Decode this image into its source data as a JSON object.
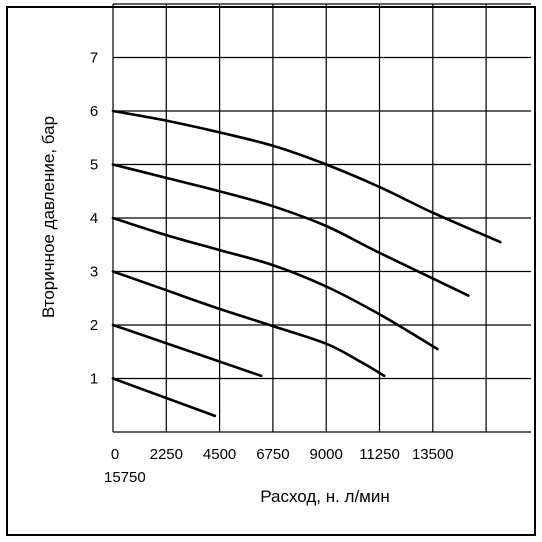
{
  "chart_data": {
    "type": "line",
    "title": "",
    "xlabel": "Расход, н. л/мин",
    "ylabel": "Вторичное давление, бар",
    "xlim": [
      0,
      15750
    ],
    "ylim": [
      0,
      7.5
    ],
    "x_ticks": [
      "0",
      "2250",
      "4500",
      "6750",
      "9000",
      "11250",
      "13500",
      "15750"
    ],
    "y_ticks": [
      "1",
      "2",
      "3",
      "4",
      "5",
      "6",
      "7"
    ],
    "grid": true,
    "legend": "none",
    "series": [
      {
        "x": [
          0,
          4300
        ],
        "values": [
          1.0,
          0.3
        ]
      },
      {
        "x": [
          0,
          6250
        ],
        "values": [
          2.0,
          1.05
        ]
      },
      {
        "x": [
          0,
          2250,
          4500,
          6750,
          9000,
          10500,
          11450
        ],
        "values": [
          3.0,
          2.65,
          2.3,
          1.98,
          1.65,
          1.3,
          1.05
        ]
      },
      {
        "x": [
          0,
          2250,
          4500,
          6750,
          9000,
          11250,
          13700
        ],
        "values": [
          4.0,
          3.68,
          3.4,
          3.12,
          2.72,
          2.2,
          1.55
        ]
      },
      {
        "x": [
          0,
          2250,
          4500,
          6750,
          9000,
          11250,
          15000
        ],
        "values": [
          5.0,
          4.75,
          4.5,
          4.22,
          3.85,
          3.35,
          2.55
        ]
      },
      {
        "x": [
          0,
          2250,
          4500,
          6750,
          9000,
          11250,
          13500,
          16350
        ],
        "values": [
          6.0,
          5.82,
          5.6,
          5.35,
          5.0,
          4.58,
          4.1,
          3.55
        ]
      }
    ]
  }
}
